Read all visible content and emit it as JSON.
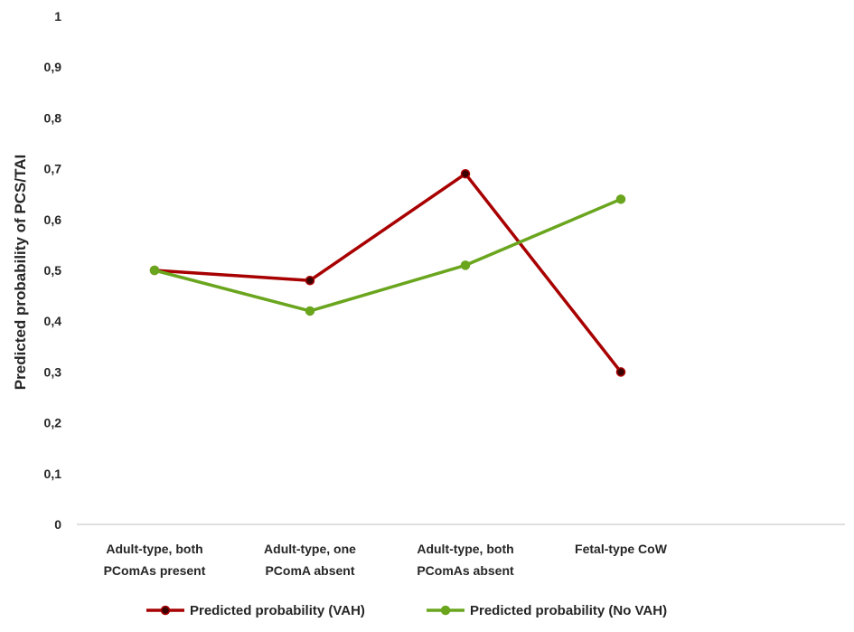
{
  "chart_data": {
    "type": "line",
    "title": "",
    "xlabel": "",
    "ylabel": "Predicted probability of PCS/TAI",
    "ylim": [
      0,
      1
    ],
    "yticks": [
      "0",
      "0,1",
      "0,2",
      "0,3",
      "0,4",
      "0,5",
      "0,6",
      "0,7",
      "0,8",
      "0,9",
      "1"
    ],
    "categories": [
      [
        "Adult-type, both",
        "PComAs present"
      ],
      [
        "Adult-type, one",
        "PComA absent"
      ],
      [
        "Adult-type, both",
        "PComAs absent"
      ],
      [
        "Fetal-type CoW",
        ""
      ]
    ],
    "series": [
      {
        "name": "Predicted probability (VAH)",
        "values": [
          0.5,
          0.48,
          0.69,
          0.3
        ],
        "color": "#a80000",
        "marker_color": "#3a0000"
      },
      {
        "name": "Predicted probability (No VAH)",
        "values": [
          0.5,
          0.42,
          0.51,
          0.64
        ],
        "color": "#6aa51e",
        "marker_color": "#6aa51e"
      }
    ],
    "grid": false,
    "legend": "bottom"
  }
}
